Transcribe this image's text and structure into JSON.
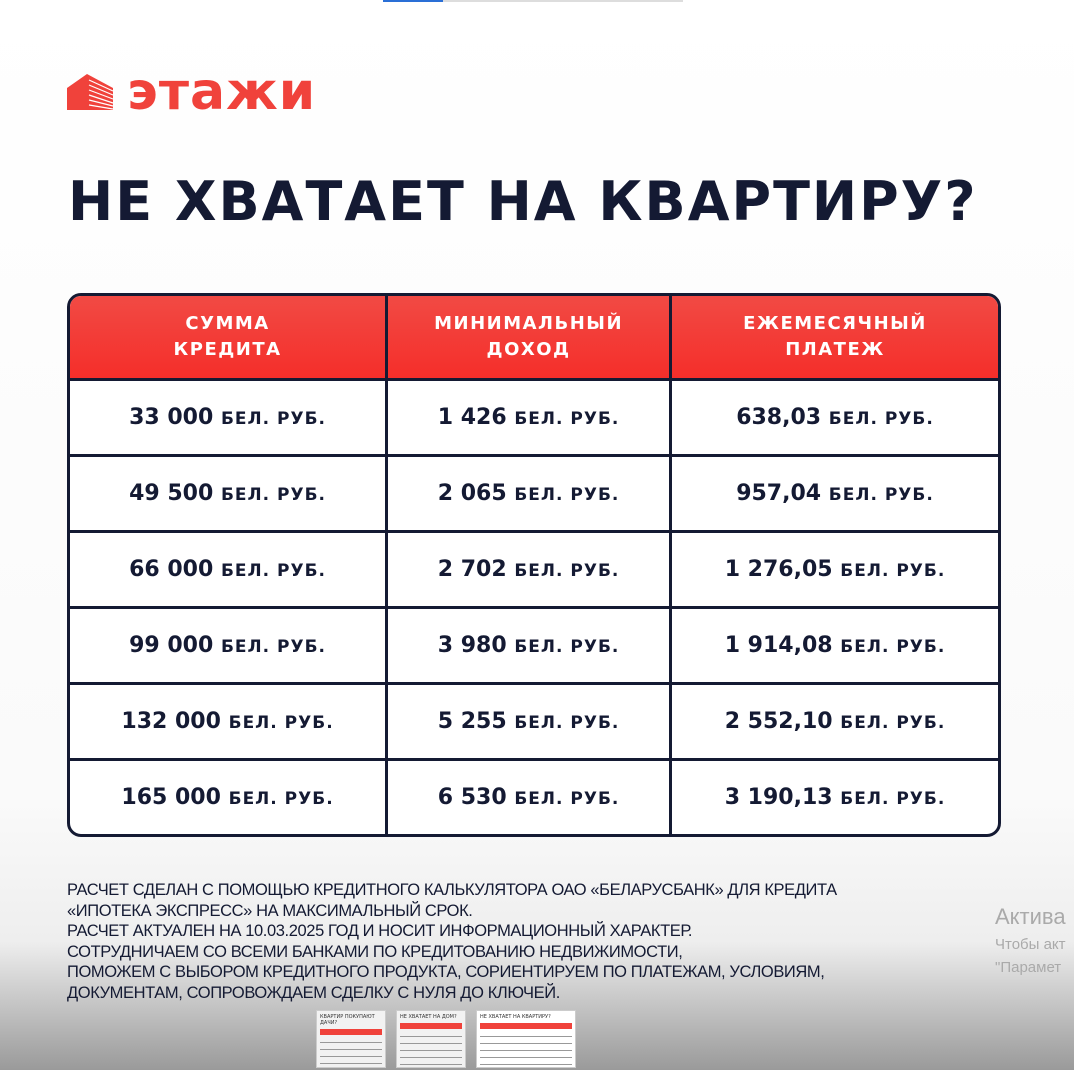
{
  "brand": {
    "name": "этажи",
    "color": "#f0423b"
  },
  "headline": "НЕ ХВАТАЕТ НА КВАРТИРУ?",
  "table": {
    "headers": [
      [
        "СУММА",
        "КРЕДИТА"
      ],
      [
        "МИНИМАЛЬНЫЙ",
        "ДОХОД"
      ],
      [
        "ЕЖЕМЕСЯЧНЫЙ",
        "ПЛАТЕЖ"
      ]
    ],
    "unit": "БЕЛ. РУБ.",
    "rows": [
      [
        "33 000",
        "1 426",
        "638,03"
      ],
      [
        "49 500",
        "2 065",
        "957,04"
      ],
      [
        "66 000",
        "2 702",
        "1 276,05"
      ],
      [
        "99 000",
        "3 980",
        "1 914,08"
      ],
      [
        "132 000",
        "5 255",
        "2 552,10"
      ],
      [
        "165 000",
        "6 530",
        "3 190,13"
      ]
    ]
  },
  "note": [
    "РАСЧЕТ СДЕЛАН С ПОМОЩЬЮ КРЕДИТНОГО КАЛЬКУЛЯТОРА ОАО «БЕЛАРУСБАНК» ДЛЯ КРЕДИТА",
    "«ИПОТЕКА ЭКСПРЕСС» НА МАКСИМАЛЬНЫЙ СРОК.",
    "РАСЧЕТ АКТУАЛЕН НА 10.03.2025 ГОД И НОСИТ ИНФОРМАЦИОННЫЙ ХАРАКТЕР.",
    "СОТРУДНИЧАЕМ СО ВСЕМИ БАНКАМИ ПО КРЕДИТОВАНИЮ НЕДВИЖИМОСТИ,",
    "ПОМОЖЕМ С ВЫБОРОМ КРЕДИТНОГО ПРОДУКТА, СОРИЕНТИРУЕМ ПО ПЛАТЕЖАМ, УСЛОВИЯМ,",
    "ДОКУМЕНТАМ, СОПРОВОЖДАЕМ СДЕЛКУ С НУЛЯ ДО КЛЮЧЕЙ."
  ],
  "watermark": {
    "line1": "Актива",
    "line2": "Чтобы акт",
    "line3": "\"Парамет"
  },
  "thumbnails": [
    {
      "title": "КВАРТИР ПОКУПАЮТ ДАЧИ?"
    },
    {
      "title": "НЕ ХВАТАЕТ НА ДОМ?"
    },
    {
      "title": "НЕ ХВАТАЕТ НА КВАРТИРУ?"
    }
  ]
}
